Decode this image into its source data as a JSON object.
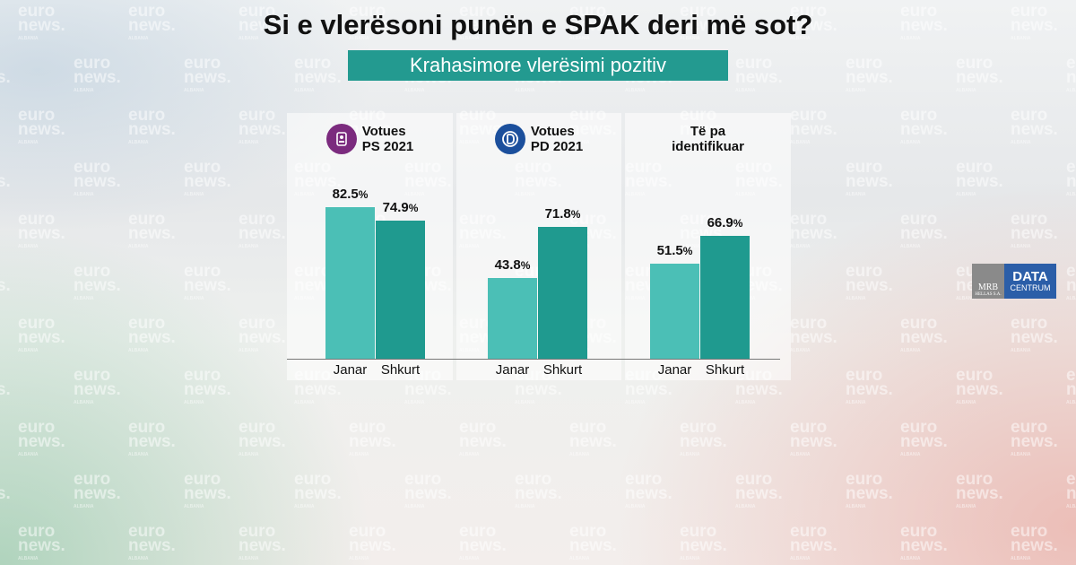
{
  "title": "Si e vlerësoni punën e SPAK deri më sot?",
  "subtitle": "Krahasimore vlerësimi pozitiv",
  "watermark": {
    "line1": "euro",
    "line2": "news.",
    "line3": "ALBANIA"
  },
  "colors": {
    "janar": "#4bbfb6",
    "shkurt": "#1f9a8f",
    "subtitle_bg": "#239a90",
    "ps_icon": "#7b2b7e",
    "pd_icon": "#1b4f9c"
  },
  "logo": {
    "mrb": "MRB",
    "mrb_sub": "HELLAS S.A.",
    "data": "DATA",
    "centrum": "CENTRUM"
  },
  "chart_data": {
    "type": "bar",
    "unit": "%",
    "categories": [
      "Janar",
      "Shkurt"
    ],
    "groups": [
      {
        "label_line1": "Votues",
        "label_line2": "PS 2021",
        "icon": "ps-party-icon",
        "values": [
          82.5,
          74.9
        ]
      },
      {
        "label_line1": "Votues",
        "label_line2": "PD 2021",
        "icon": "pd-party-icon",
        "values": [
          43.8,
          71.8
        ]
      },
      {
        "label_line1": "Të pa",
        "label_line2": "identifikuar",
        "icon": "",
        "values": [
          51.5,
          66.9
        ]
      }
    ]
  }
}
